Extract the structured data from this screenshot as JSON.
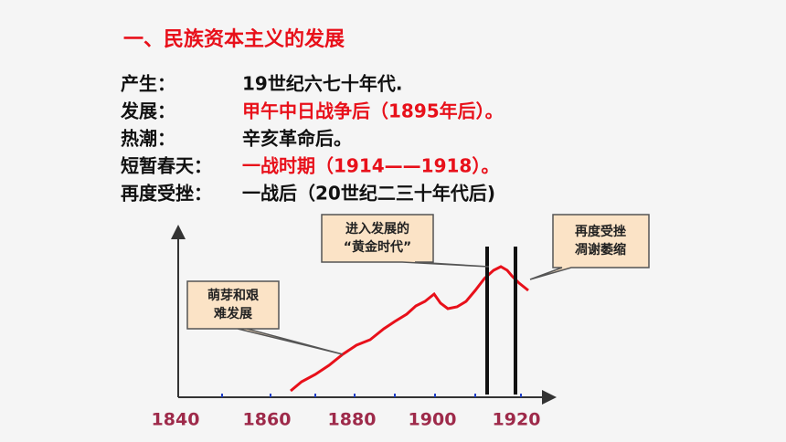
{
  "title": "一、民族资本主义的发展",
  "rows": [
    {
      "label": "产生：",
      "value": "19世纪六七十年代."
    },
    {
      "label": "发展：",
      "value": "甲午中日战争后（1895年后）。"
    },
    {
      "label": "热潮：",
      "value": "辛亥革命后。"
    },
    {
      "label": "短暂春天：",
      "value": "一战时期（1914——1918）。"
    },
    {
      "label": "再度受挫：",
      "value": "一战后（20世纪二三十年代后)"
    }
  ],
  "axis_labels": [
    1840,
    1860,
    1880,
    1900,
    1920
  ],
  "callouts": [
    {
      "lines": [
        "萌芽和艰",
        "难发展"
      ]
    },
    {
      "lines": [
        "进入发展的",
        "“黄金时代”"
      ]
    },
    {
      "lines": [
        "再度受挫",
        "凋谢萎缩"
      ]
    }
  ]
}
